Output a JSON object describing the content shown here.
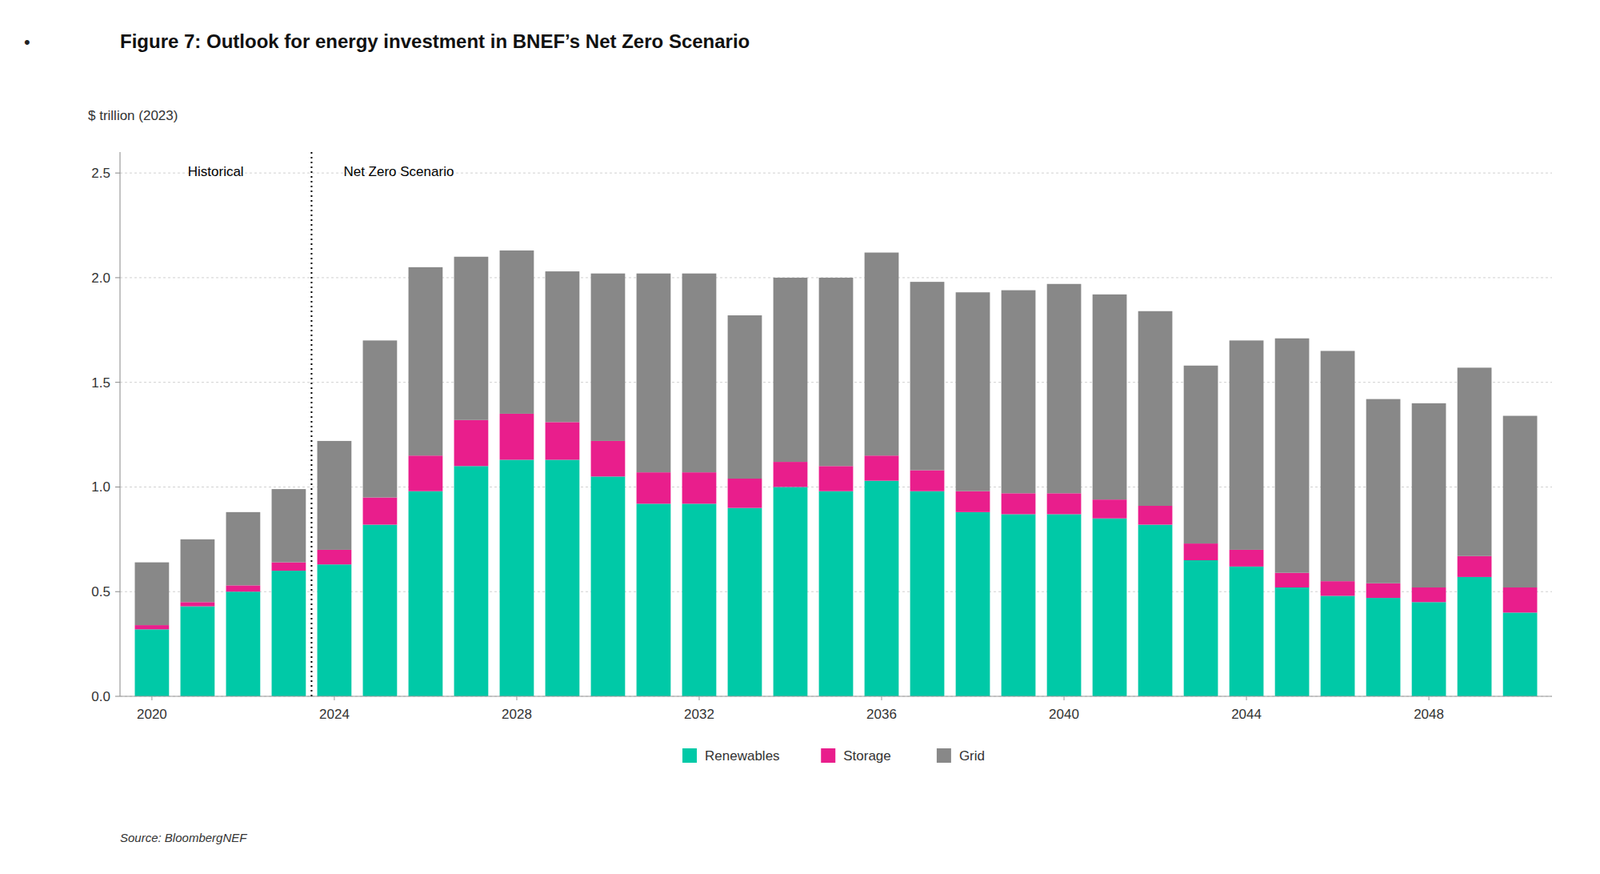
{
  "chart_data": {
    "type": "bar",
    "stacked": true,
    "title": "Figure 7:  Outlook for energy investment in BNEF’s Net Zero Scenario",
    "bullet": "•",
    "y_label": "$ trillion (2023)",
    "source": "Source: BloombergNEF",
    "annotations": [
      {
        "text": "Historical"
      },
      {
        "text": "Net Zero Scenario"
      }
    ],
    "divider_x": 2023.5,
    "x": [
      2020,
      2021,
      2022,
      2023,
      2024,
      2025,
      2026,
      2027,
      2028,
      2029,
      2030,
      2031,
      2032,
      2033,
      2034,
      2035,
      2036,
      2037,
      2038,
      2039,
      2040,
      2041,
      2042,
      2043,
      2044,
      2045,
      2046,
      2047,
      2048,
      2049,
      2050
    ],
    "series": [
      {
        "name": "Renewables",
        "color": "#00C9A7",
        "values": [
          0.32,
          0.43,
          0.5,
          0.6,
          0.63,
          0.82,
          0.98,
          1.1,
          1.13,
          1.13,
          1.05,
          0.92,
          0.92,
          0.9,
          1.0,
          0.98,
          1.03,
          0.98,
          0.88,
          0.87,
          0.87,
          0.85,
          0.82,
          0.65,
          0.62,
          0.52,
          0.48,
          0.47,
          0.45,
          0.57,
          0.4
        ]
      },
      {
        "name": "Storage",
        "color": "#E91E8C",
        "values": [
          0.02,
          0.02,
          0.03,
          0.04,
          0.07,
          0.13,
          0.17,
          0.22,
          0.22,
          0.18,
          0.17,
          0.15,
          0.15,
          0.14,
          0.12,
          0.12,
          0.12,
          0.1,
          0.1,
          0.1,
          0.1,
          0.09,
          0.09,
          0.08,
          0.08,
          0.07,
          0.07,
          0.07,
          0.07,
          0.1,
          0.12
        ]
      },
      {
        "name": "Grid",
        "color": "#888888",
        "values": [
          0.3,
          0.3,
          0.35,
          0.35,
          0.52,
          0.75,
          0.9,
          0.78,
          0.78,
          0.72,
          0.8,
          0.95,
          0.95,
          0.78,
          0.88,
          0.9,
          0.97,
          0.9,
          0.95,
          0.97,
          1.0,
          0.98,
          0.93,
          0.85,
          1.0,
          1.12,
          1.1,
          0.88,
          0.88,
          0.9,
          0.82
        ]
      }
    ],
    "xlim": [
      2019.3,
      2050.7
    ],
    "xticks": [
      2020,
      2024,
      2028,
      2032,
      2036,
      2040,
      2044,
      2048
    ],
    "ylim": [
      0,
      2.6
    ],
    "yticks": [
      {
        "value": 0.0,
        "label": "0.0"
      },
      0.5,
      {
        "value": 1.0,
        "label": "1.0"
      },
      1.5,
      {
        "value": 2.0,
        "label": "2.0"
      },
      2.5
    ],
    "grid": true,
    "legend": "bottom"
  }
}
